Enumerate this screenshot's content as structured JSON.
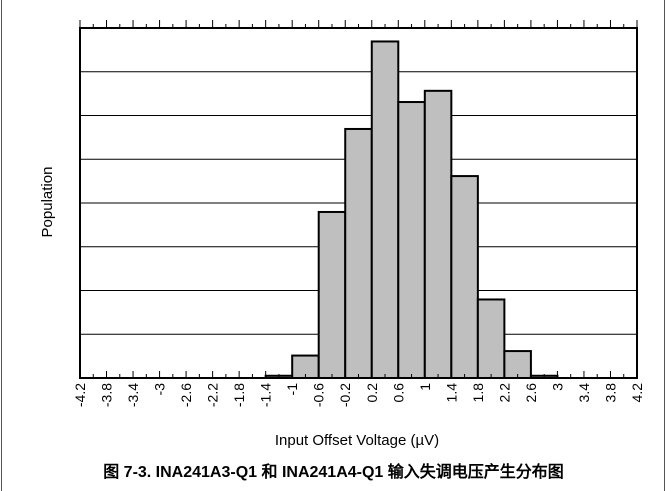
{
  "chart_data": {
    "type": "bar",
    "title": "",
    "xlabel": "Input Offset Voltage (µV)",
    "ylabel": "Population",
    "tick_labels": [
      "-4.2",
      "-3.8",
      "-3.4",
      "-3",
      "-2.6",
      "-2.2",
      "-1.8",
      "-1.4",
      "-1",
      "-0.6",
      "-0.2",
      "0.2",
      "0.6",
      "1",
      "1.4",
      "1.8",
      "2.2",
      "2.6",
      "3",
      "3.4",
      "3.8",
      "4.2"
    ],
    "bin_edges": [
      -4.2,
      -3.8,
      -3.4,
      -3.0,
      -2.6,
      -2.2,
      -1.8,
      -1.4,
      -1.0,
      -0.6,
      -0.2,
      0.2,
      0.6,
      1.0,
      1.4,
      1.8,
      2.2,
      2.6,
      3.0,
      3.4,
      3.8,
      4.2
    ],
    "values": [
      0,
      0,
      0,
      0,
      0,
      0,
      0,
      0.1,
      1.0,
      7.4,
      11.1,
      15.0,
      12.3,
      12.8,
      9.0,
      3.5,
      1.2,
      0.1,
      0,
      0,
      0
    ],
    "ylim": [
      0,
      15.6
    ],
    "grid": "horizontal",
    "bar_color": "#bfbfbf",
    "edge_color": "#000000"
  },
  "caption": "图 7-3. INA241A3-Q1 和 INA241A4-Q1 输入失调电压产生分布图"
}
